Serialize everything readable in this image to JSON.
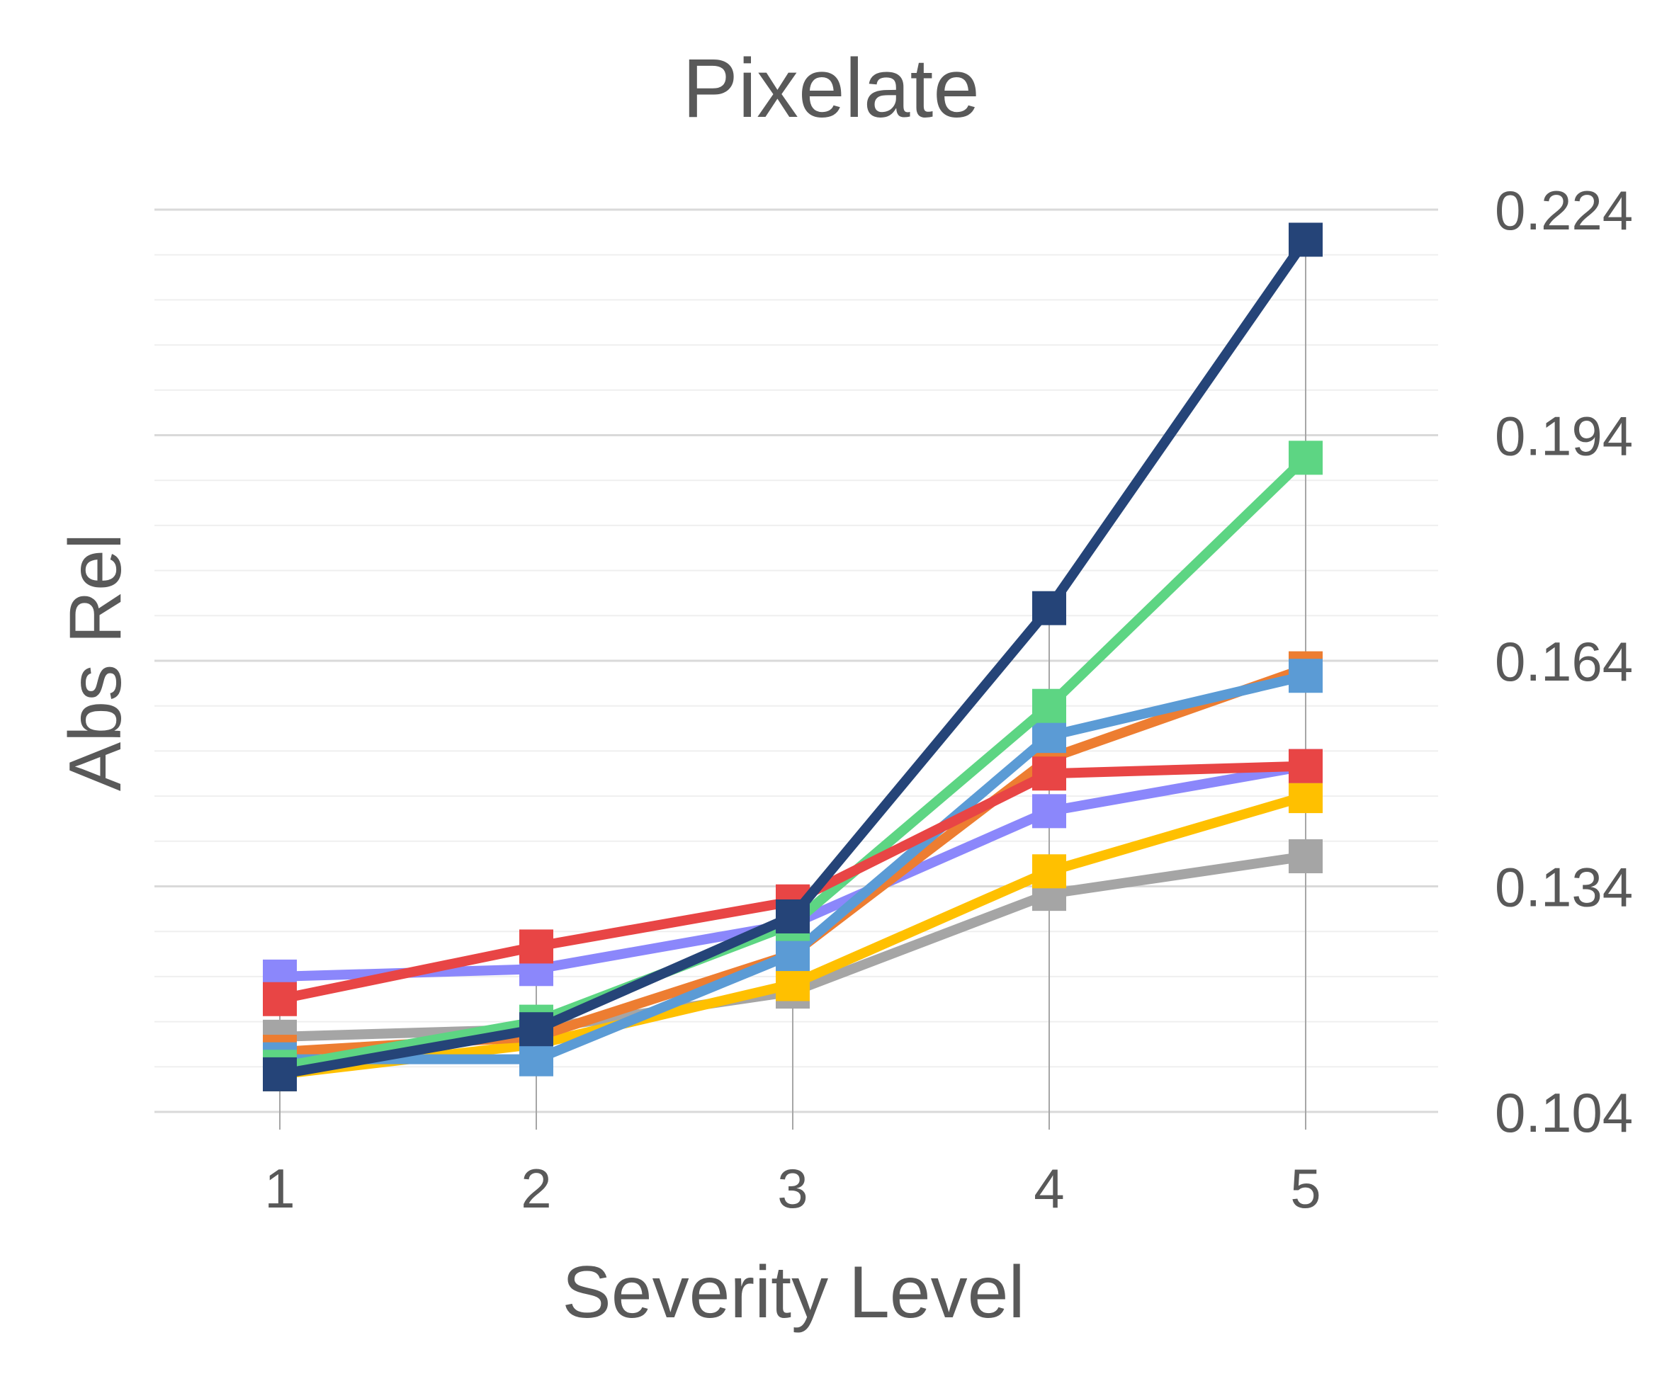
{
  "chart_data": {
    "type": "line",
    "title": "Pixelate",
    "xlabel": "Severity Level",
    "ylabel": "Abs Rel",
    "x": [
      1,
      2,
      3,
      4,
      5
    ],
    "x_tick_labels": [
      "1",
      "2",
      "3",
      "4",
      "5"
    ],
    "ylim": [
      0.104,
      0.224
    ],
    "y_ticks": [
      0.104,
      0.134,
      0.164,
      0.194,
      0.224
    ],
    "y_tick_labels": [
      "0.104",
      "0.134",
      "0.164",
      "0.194",
      "0.224"
    ],
    "y_axis_side": "right",
    "grid": true,
    "legend": "none",
    "series": [
      {
        "color": "#A5A5A5",
        "values": [
          0.114,
          0.115,
          0.12,
          0.133,
          0.138
        ]
      },
      {
        "color": "#FFC000",
        "values": [
          0.109,
          0.113,
          0.121,
          0.136,
          0.146
        ]
      },
      {
        "color": "#8B87FB",
        "values": [
          0.122,
          0.123,
          0.129,
          0.144,
          0.15
        ]
      },
      {
        "color": "#ED7D31",
        "values": [
          0.112,
          0.114,
          0.125,
          0.151,
          0.163
        ]
      },
      {
        "color": "#5B9BD5",
        "values": [
          0.111,
          0.111,
          0.125,
          0.154,
          0.162
        ]
      },
      {
        "color": "#5DD583",
        "values": [
          0.11,
          0.116,
          0.129,
          0.158,
          0.191
        ]
      },
      {
        "color": "#E84545",
        "values": [
          0.119,
          0.126,
          0.132,
          0.149,
          0.15
        ]
      },
      {
        "color": "#254478",
        "values": [
          0.109,
          0.115,
          0.13,
          0.171,
          0.22
        ]
      }
    ]
  }
}
